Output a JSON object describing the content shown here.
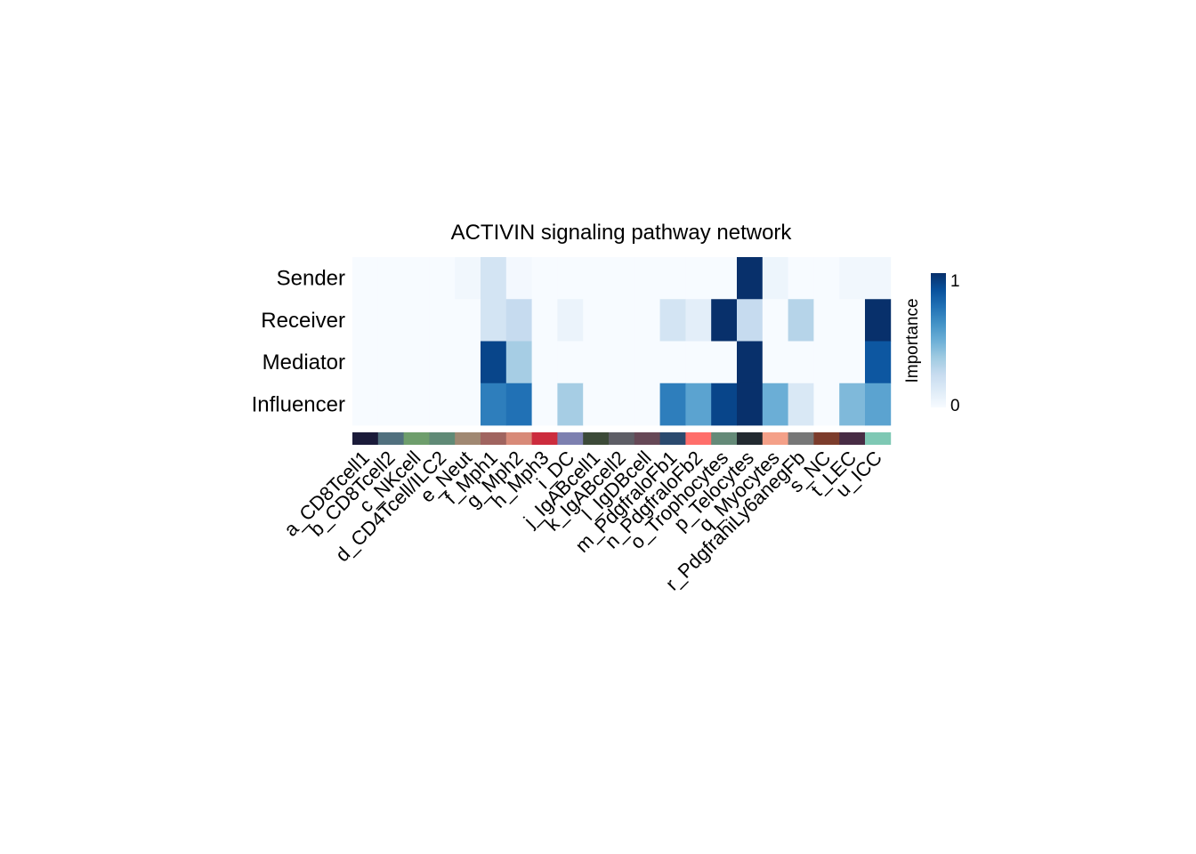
{
  "chart_data": {
    "type": "heatmap",
    "title": "ACTIVIN signaling pathway network",
    "rows": [
      "Sender",
      "Receiver",
      "Mediator",
      "Influencer"
    ],
    "columns": [
      "a_CD8Tcell1",
      "b_CD8Tcell2",
      "c_NKcell",
      "d_CD4Tcell/ILC2",
      "e_Neut",
      "f_Mph1",
      "g_Mph2",
      "h_Mph3",
      "i_DC",
      "j_IgABcell1",
      "k_IgABcell2",
      "l_IgDBcell",
      "m_PdgfraloFb1",
      "n_PdgfraloFb2",
      "o_Trophocytes",
      "p_Telocytes",
      "q_Myocytes",
      "r_PdgfrahiLy6anegFb",
      "s_NC",
      "t_LEC",
      "u_ICC"
    ],
    "column_colors": [
      "#1B1B3A",
      "#51707E",
      "#6E9E6C",
      "#608A76",
      "#A08872",
      "#A0645F",
      "#D88A78",
      "#CC2C3D",
      "#7D80B0",
      "#3C4A38",
      "#5E5E66",
      "#664856",
      "#2B4A6E",
      "#FF6E6A",
      "#648A78",
      "#222A30",
      "#F4A088",
      "#777777",
      "#7C3C2C",
      "#482C44",
      "#7EC8B4"
    ],
    "values": [
      [
        0,
        0,
        0,
        0,
        0.03,
        0.18,
        0.02,
        0,
        0,
        0,
        0,
        0,
        0,
        0,
        0,
        1,
        0.05,
        0,
        0,
        0.03,
        0.03
      ],
      [
        0,
        0,
        0,
        0,
        0,
        0.18,
        0.25,
        0,
        0.06,
        0,
        0,
        0,
        0.18,
        0.1,
        1,
        0.25,
        0,
        0.3,
        0,
        0,
        1
      ],
      [
        0,
        0,
        0,
        0,
        0,
        0.92,
        0.35,
        0,
        0,
        0,
        0,
        0,
        0,
        0,
        0,
        1,
        0,
        0,
        0,
        0,
        0.85
      ],
      [
        0,
        0,
        0,
        0,
        0,
        0.7,
        0.75,
        0,
        0.35,
        0,
        0,
        0,
        0.7,
        0.55,
        0.92,
        1,
        0.5,
        0.15,
        0,
        0.45,
        0.55
      ]
    ],
    "colorbar": {
      "label": "Importance",
      "min": 0,
      "max": 1,
      "ticks": [
        "0",
        "1"
      ]
    },
    "colorscale": [
      "#F7FBFF",
      "#DEEBF7",
      "#C6DBEF",
      "#9ECAE1",
      "#6BAED6",
      "#4292C6",
      "#2171B5",
      "#08519C",
      "#08306B"
    ]
  }
}
